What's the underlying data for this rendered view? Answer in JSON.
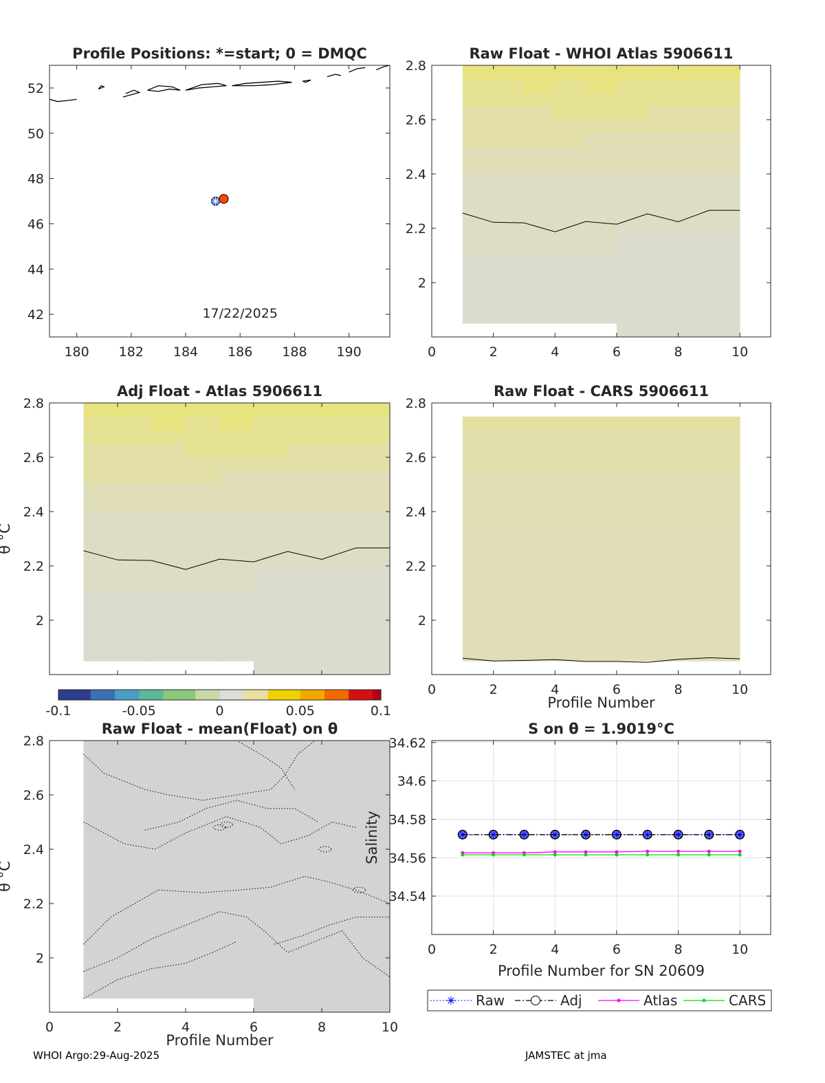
{
  "footer": {
    "left": "WHOI Argo:29-Aug-2025",
    "right": "JAMSTEC at jma"
  },
  "colors": {
    "land": "#000000",
    "start_marker": "#4169e1",
    "dmqc_marker": "#ff4500",
    "raw": "#0000ff",
    "adj": "#000000",
    "atlas": "#ff00ff",
    "cars": "#00dd00",
    "zero_fill": "#dcdcd0",
    "yellow_fill": "#e8e47c"
  },
  "chart_data": [
    {
      "id": "map",
      "type": "scatter",
      "title": "Profile Positions: *=start; 0 = DMQC",
      "xlim": [
        179,
        191.5
      ],
      "ylim": [
        41,
        53
      ],
      "xticks": [
        "180",
        "182",
        "184",
        "186",
        "188",
        "190"
      ],
      "yticks": [
        "42",
        "44",
        "46",
        "48",
        "50",
        "52"
      ],
      "annotation": "17/22/2025",
      "points": [
        {
          "lon": 185.1,
          "lat": 47.0,
          "marker": "start"
        },
        {
          "lon": 185.4,
          "lat": 47.1,
          "marker": "dmqc"
        }
      ]
    },
    {
      "id": "raw_whoi",
      "type": "heatmap",
      "title": "Raw Float - WHOI Atlas  5906611",
      "xlim": [
        0,
        11
      ],
      "ylim": [
        1.8,
        2.8
      ],
      "xticks": [
        "0",
        "2",
        "4",
        "6",
        "8",
        "10"
      ],
      "yticks": [
        "2",
        "2.2",
        "2.4",
        "2.6",
        "2.8"
      ],
      "zero_contour": [
        2.256,
        2.222,
        2.22,
        2.187,
        2.225,
        2.215,
        2.253,
        2.224,
        2.266,
        2.266
      ]
    },
    {
      "id": "adj_atlas",
      "type": "heatmap",
      "title": "Adj Float - Atlas  5906611",
      "ylabel": "θ °C",
      "xlim": [
        0,
        10
      ],
      "ylim": [
        1.8,
        2.8
      ],
      "xticks": [],
      "yticks": [
        "2",
        "2.2",
        "2.4",
        "2.6",
        "2.8"
      ],
      "zero_contour": [
        2.256,
        2.222,
        2.22,
        2.187,
        2.225,
        2.215,
        2.253,
        2.224,
        2.266,
        2.266
      ]
    },
    {
      "id": "raw_cars",
      "type": "heatmap",
      "title": "Raw Float - CARS  5906611",
      "xlabel": "Profile Number",
      "xlim": [
        0,
        11
      ],
      "ylim": [
        1.8,
        2.8
      ],
      "xticks": [
        "0",
        "2",
        "4",
        "6",
        "8",
        "10"
      ],
      "yticks": [
        "2",
        "2.2",
        "2.4",
        "2.6",
        "2.8"
      ],
      "zero_contour": [
        1.86,
        1.85,
        1.852,
        1.855,
        1.848,
        1.848,
        1.845,
        1.856,
        1.862,
        1.858
      ]
    },
    {
      "id": "colorbar",
      "type": "colorbar",
      "range": [
        -0.1,
        0.1
      ],
      "ticks": [
        "-0.1",
        "-0.05",
        "0",
        "0.05",
        "0.1"
      ]
    },
    {
      "id": "mean_diff",
      "type": "heatmap",
      "title": "Raw Float - mean(Float) on θ",
      "xlabel": "Profile Number",
      "ylabel": "θ °C",
      "xlim": [
        0,
        10
      ],
      "ylim": [
        1.8,
        2.8
      ],
      "xticks": [
        "0",
        "2",
        "4",
        "6",
        "8",
        "10"
      ],
      "yticks": [
        "2",
        "2.2",
        "2.4",
        "2.6",
        "2.8"
      ]
    },
    {
      "id": "salinity",
      "type": "line",
      "title": "S on θ = 1.9019°C",
      "xlabel": "Profile Number for SN 20609",
      "ylabel": "Salinity",
      "xlim": [
        0,
        11
      ],
      "ylim": [
        34.52,
        34.621
      ],
      "xticks": [
        "0",
        "2",
        "4",
        "6",
        "8",
        "10"
      ],
      "yticks": [
        "34.54",
        "34.56",
        "34.58",
        "34.6",
        "34.62"
      ],
      "grid": true,
      "legend_position": "bottom",
      "x": [
        1,
        2,
        3,
        4,
        5,
        6,
        7,
        8,
        9,
        10
      ],
      "series": [
        {
          "name": "Raw",
          "values": [
            34.572,
            34.572,
            34.572,
            34.572,
            34.572,
            34.572,
            34.572,
            34.572,
            34.572,
            34.572
          ]
        },
        {
          "name": "Adj",
          "values": [
            34.572,
            34.572,
            34.572,
            34.572,
            34.572,
            34.572,
            34.572,
            34.572,
            34.572,
            34.572
          ]
        },
        {
          "name": "Atlas",
          "values": [
            34.5625,
            34.5625,
            34.5625,
            34.563,
            34.563,
            34.563,
            34.5633,
            34.5633,
            34.5633,
            34.5633
          ]
        },
        {
          "name": "CARS",
          "values": [
            34.5615,
            34.5615,
            34.5615,
            34.5615,
            34.5615,
            34.5615,
            34.5615,
            34.5615,
            34.5615,
            34.5615
          ]
        }
      ]
    }
  ]
}
